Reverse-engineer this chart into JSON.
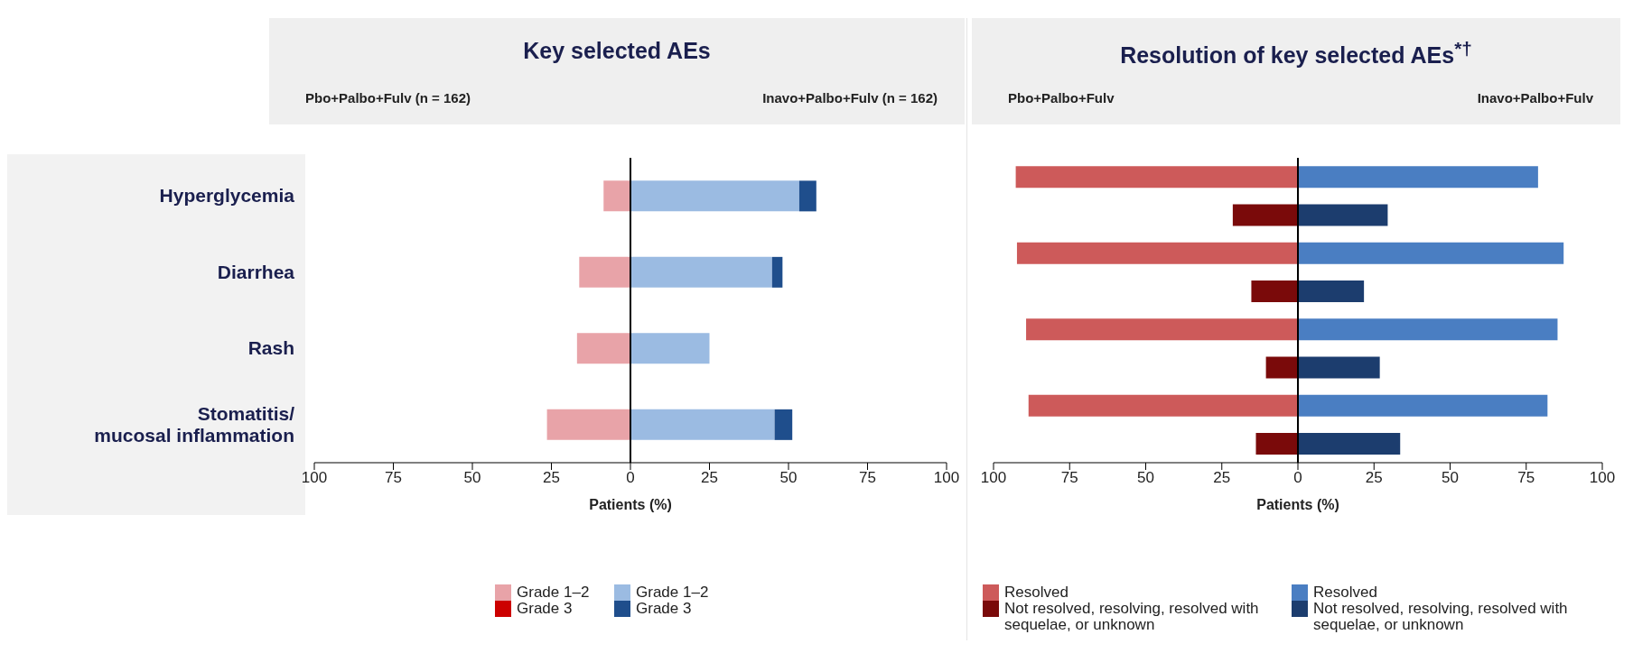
{
  "chart_data": [
    {
      "type": "bar",
      "title": "Key selected AEs",
      "orientation": "horizontal",
      "stacked": true,
      "annotations": [
        "Pbo+Palbo+Fulv (n = 162)",
        "Inavo+Palbo+Fulv (n = 162)"
      ],
      "categories": [
        "Hyperglycemia",
        "Diarrhea",
        "Rash",
        "Stomatitis/ mucosal inflammation"
      ],
      "series": [
        {
          "name": "Grade 1–2",
          "color": "#e8a3a8",
          "values": [
            -8.5,
            -16.2,
            -16.9,
            -26.4
          ]
        },
        {
          "name": "Grade 3",
          "color": "#cc0000",
          "values": [
            0,
            0,
            0,
            0
          ]
        },
        {
          "name": "Grade 1–2",
          "color": "#9bbbe2",
          "values": [
            53.4,
            44.8,
            25.0,
            45.6
          ]
        },
        {
          "name": "Grade 3",
          "color": "#1f4e8c",
          "values": [
            5.4,
            3.3,
            0,
            5.6
          ]
        }
      ],
      "xlim": [
        -100,
        100
      ],
      "xticks": [
        {
          "value": -100,
          "label": "100"
        },
        {
          "value": -75,
          "label": "75"
        },
        {
          "value": -50,
          "label": "50"
        },
        {
          "value": -25,
          "label": "25"
        },
        0,
        25,
        50,
        75,
        100
      ],
      "xlabel": "Patients (%)",
      "ref_lines": [
        {
          "axis": "x",
          "value": 0
        }
      ],
      "legend": "bottom"
    },
    {
      "type": "bar",
      "title": "Resolution of key selected AEs$^{*†}$",
      "orientation": "horizontal",
      "annotations": [
        "Pbo+Palbo+Fulv",
        "Inavo+Palbo+Fulv"
      ],
      "categories": [
        null,
        null,
        null,
        null,
        null,
        null,
        null,
        null
      ],
      "stacked": true,
      "tick_labels": "x",
      "series": [
        {
          "name": "Resolved",
          "color": "#cd5a5a",
          "values": [
            -92.7,
            null,
            -92.3,
            null,
            -89.3,
            null,
            -88.5,
            null
          ]
        },
        {
          "name": "Not resolved, resolving, resolved with sequelae, or unknown",
          "color": "#7a0a0a",
          "values": [
            null,
            -21.4,
            null,
            -15.3,
            null,
            -10.5,
            null,
            -13.8
          ]
        },
        {
          "name": "Resolved",
          "color": "#4a7ec2",
          "values": [
            78.9,
            null,
            87.3,
            null,
            85.3,
            null,
            82.0,
            null
          ]
        },
        {
          "name": "Not resolved, resolving, resolved with sequelae, or unknown",
          "color": "#1c3d6e",
          "values": [
            null,
            29.5,
            null,
            21.7,
            null,
            26.9,
            null,
            33.6
          ]
        }
      ],
      "xlim": [
        -100,
        100
      ],
      "xticks": [
        {
          "value": -100,
          "label": "100"
        },
        {
          "value": -75,
          "label": "75"
        },
        {
          "value": -50,
          "label": "50"
        },
        {
          "value": -25,
          "label": "25"
        },
        0,
        25,
        50,
        75,
        100
      ],
      "xlabel": "Patients (%)",
      "ref_lines": [
        {
          "axis": "x",
          "value": 0
        }
      ],
      "legend": "bottom"
    }
  ]
}
